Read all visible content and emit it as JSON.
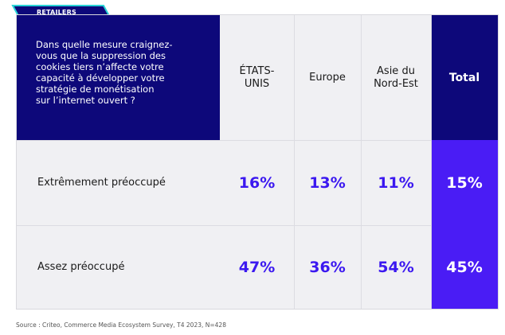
{
  "tag": "RETAILERS",
  "question": "Dans quelle mesure craignez-\nvous que la suppression des\ncookies tiers n’affecte votre\ncapacité à développer votre\nstratégie de monétisation\nsur l’internet ouvert ?",
  "source": "Source : Criteo, Commerce Media Ecosystem Survey, T4 2023, N=428",
  "colors": {
    "header_bg": "#0d087a",
    "total_bg": "#4a1cf5",
    "value_text": "#3b18f0",
    "cell_bg": "#f0f0f3"
  },
  "chart_data": {
    "type": "table",
    "columns": [
      "ÉTATS-\nUNIS",
      "Europe",
      "Asie du\nNord-Est",
      "Total"
    ],
    "rows": [
      {
        "label": "Extrêmement préoccupé",
        "values": [
          "16%",
          "13%",
          "11%",
          "15%"
        ]
      },
      {
        "label": "Assez préoccupé",
        "values": [
          "47%",
          "36%",
          "54%",
          "45%"
        ]
      }
    ]
  }
}
